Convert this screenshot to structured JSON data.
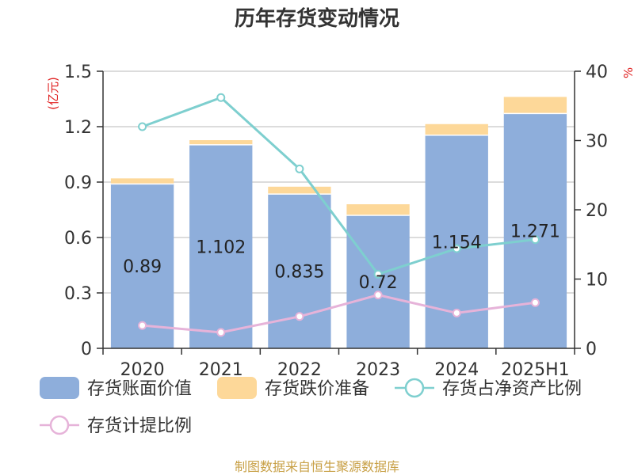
{
  "chart_data": {
    "type": "bar",
    "title": "历年存货变动情况",
    "categories": [
      "2020",
      "2021",
      "2022",
      "2023",
      "2024",
      "2025H1"
    ],
    "y_left": {
      "unit": "(亿元)",
      "lim": [
        0,
        1.5
      ],
      "ticks": [
        "0",
        "0.3",
        "0.6",
        "0.9",
        "1.2",
        "1.5"
      ],
      "tick_values": [
        0,
        0.3,
        0.6,
        0.9,
        1.2,
        1.5
      ]
    },
    "y_right": {
      "unit": "%",
      "lim": [
        0,
        40
      ],
      "ticks": [
        "0",
        "10",
        "20",
        "30",
        "40"
      ],
      "tick_values": [
        0,
        10,
        20,
        30,
        40
      ]
    },
    "grid": true,
    "legend_position": "bottom",
    "series": [
      {
        "name": "存货账面价值",
        "kind": "bar",
        "axis": "left",
        "color": "#8eaedb",
        "values": [
          0.89,
          1.102,
          0.835,
          0.72,
          1.154,
          1.271
        ],
        "labels": [
          "0.89",
          "1.102",
          "0.835",
          "0.72",
          "1.154",
          "1.271"
        ]
      },
      {
        "name": "存货跌价准备",
        "kind": "bar-stack",
        "axis": "left",
        "color": "#fdd899",
        "values": [
          0.03,
          0.025,
          0.04,
          0.06,
          0.06,
          0.09
        ]
      },
      {
        "name": "存货占净资产比例",
        "kind": "line",
        "axis": "right",
        "color": "#7ecfcf",
        "values": [
          32.0,
          36.2,
          25.9,
          10.7,
          14.4,
          15.7
        ]
      },
      {
        "name": "存货计提比例",
        "kind": "line",
        "axis": "right",
        "color": "#e6b3d9",
        "values": [
          3.3,
          2.3,
          4.6,
          7.7,
          5.1,
          6.6
        ]
      }
    ],
    "source": "制图数据来自恒生聚源数据库"
  }
}
